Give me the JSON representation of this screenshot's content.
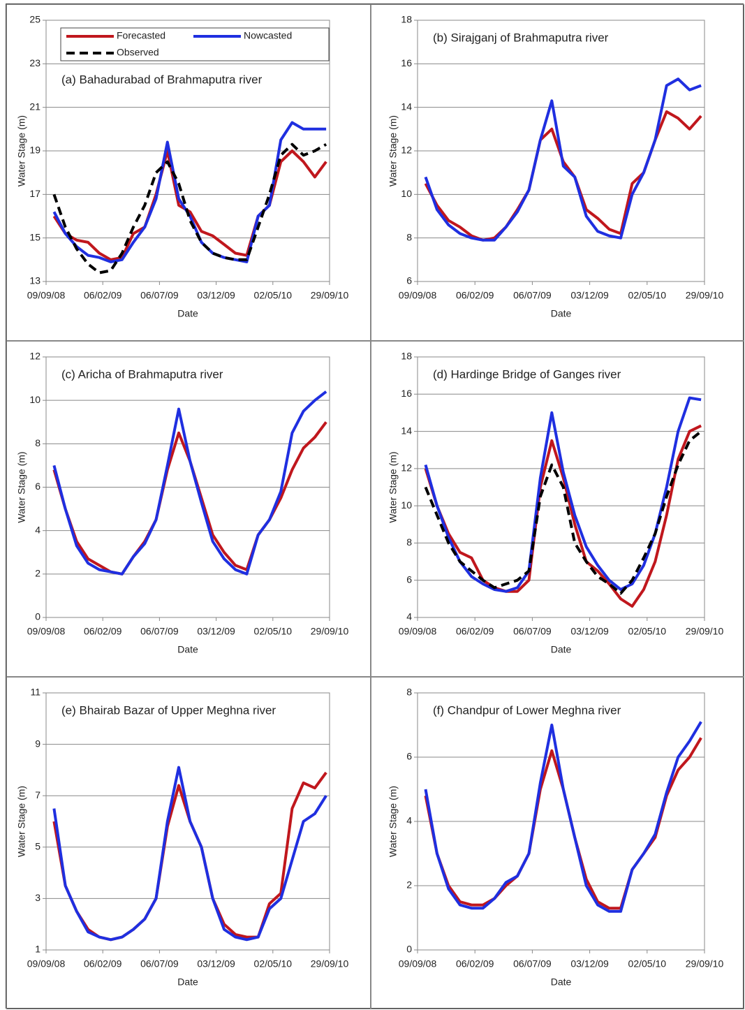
{
  "chart_data": [
    {
      "type": "line",
      "title": "(a) Bahadurabad of Brahmaputra river",
      "xlabel": "Date",
      "ylabel": "Water Stage (m)",
      "legend": "top-left",
      "grid": true,
      "x": [
        "2008-09-30",
        "2008-10-30",
        "2008-11-29",
        "2008-12-29",
        "2009-01-28",
        "2009-02-27",
        "2009-03-29",
        "2009-04-28",
        "2009-05-28",
        "2009-06-27",
        "2009-07-27",
        "2009-08-26",
        "2009-09-25",
        "2009-10-25",
        "2009-11-24",
        "2009-12-24",
        "2010-01-23",
        "2010-02-22",
        "2010-03-24",
        "2010-04-23",
        "2010-05-23",
        "2010-06-22",
        "2010-07-22",
        "2010-08-21",
        "2010-09-20"
      ],
      "xlim": [
        "2008-09-09",
        "2010-09-29"
      ],
      "xticks": [
        {
          "value": "2008-09-09",
          "label": "09/09/08"
        },
        {
          "value": "2009-02-06",
          "label": "06/02/09"
        },
        {
          "value": "2009-07-06",
          "label": "06/07/09"
        },
        {
          "value": "2009-12-03",
          "label": "03/12/09"
        },
        {
          "value": "2010-05-02",
          "label": "02/05/10"
        },
        {
          "value": "2010-09-29",
          "label": "29/09/10"
        }
      ],
      "ylim": [
        13,
        25
      ],
      "yticks": [
        13,
        15,
        17,
        19,
        21,
        23,
        25
      ],
      "series": [
        {
          "name": "Forecasted",
          "color": "#c0171d",
          "values": [
            16.0,
            15.2,
            14.9,
            14.8,
            14.3,
            14.0,
            14.1,
            15.2,
            15.5,
            17.0,
            19.0,
            16.5,
            16.2,
            15.3,
            15.1,
            14.7,
            14.3,
            14.2,
            16.0,
            16.5,
            18.5,
            19.0,
            18.5,
            17.8,
            18.5
          ]
        },
        {
          "name": "Nowcasted",
          "color": "#1f2fe0",
          "values": [
            16.2,
            15.2,
            14.6,
            14.2,
            14.1,
            13.9,
            14.0,
            14.8,
            15.5,
            16.8,
            19.4,
            16.8,
            16.0,
            14.8,
            14.3,
            14.1,
            14.0,
            13.9,
            16.0,
            16.5,
            19.5,
            20.3,
            20.0,
            20.0,
            20.0
          ]
        },
        {
          "name": "Observed",
          "color": "#000000",
          "linestyle": "dashed",
          "values": [
            17.0,
            15.5,
            14.5,
            13.8,
            13.4,
            13.5,
            14.3,
            15.5,
            16.5,
            18.0,
            18.5,
            17.5,
            15.8,
            14.8,
            14.3,
            14.1,
            14.0,
            14.0,
            15.5,
            17.0,
            18.8,
            19.3,
            18.8,
            19.0,
            19.3
          ]
        }
      ]
    },
    {
      "type": "line",
      "title": "(b) Sirajganj of Brahmaputra river",
      "xlabel": "Date",
      "ylabel": "Water Stage (m)",
      "grid": true,
      "x": [
        "2008-09-30",
        "2008-10-30",
        "2008-11-29",
        "2008-12-29",
        "2009-01-28",
        "2009-02-27",
        "2009-03-29",
        "2009-04-28",
        "2009-05-28",
        "2009-06-27",
        "2009-07-27",
        "2009-08-26",
        "2009-09-25",
        "2009-10-25",
        "2009-11-24",
        "2009-12-24",
        "2010-01-23",
        "2010-02-22",
        "2010-03-24",
        "2010-04-23",
        "2010-05-23",
        "2010-06-22",
        "2010-07-22",
        "2010-08-21",
        "2010-09-20"
      ],
      "xlim": [
        "2008-09-09",
        "2010-09-29"
      ],
      "xticks": [
        {
          "value": "2008-09-09",
          "label": "09/09/08"
        },
        {
          "value": "2009-02-06",
          "label": "06/02/09"
        },
        {
          "value": "2009-07-06",
          "label": "06/07/09"
        },
        {
          "value": "2009-12-03",
          "label": "03/12/09"
        },
        {
          "value": "2010-05-02",
          "label": "02/05/10"
        },
        {
          "value": "2010-09-29",
          "label": "29/09/10"
        }
      ],
      "ylim": [
        6,
        18
      ],
      "yticks": [
        6,
        8,
        10,
        12,
        14,
        16,
        18
      ],
      "series": [
        {
          "color": "#c0171d",
          "values": [
            10.5,
            9.5,
            8.8,
            8.5,
            8.1,
            7.9,
            8.0,
            8.5,
            9.3,
            10.2,
            12.5,
            13.0,
            11.5,
            10.8,
            9.3,
            8.9,
            8.4,
            8.2,
            10.5,
            11.0,
            12.5,
            13.8,
            13.5,
            13.0,
            13.6
          ]
        },
        {
          "color": "#1f2fe0",
          "values": [
            10.8,
            9.3,
            8.6,
            8.2,
            8.0,
            7.9,
            7.9,
            8.5,
            9.2,
            10.2,
            12.5,
            14.3,
            11.3,
            10.8,
            9.0,
            8.3,
            8.1,
            8.0,
            10.0,
            11.0,
            12.5,
            15.0,
            15.3,
            14.8,
            15.0
          ]
        }
      ]
    },
    {
      "type": "line",
      "title": "(c) Aricha of Brahmaputra river",
      "xlabel": "Date",
      "ylabel": "Water Stage (m)",
      "grid": true,
      "x": [
        "2008-09-30",
        "2008-10-30",
        "2008-11-29",
        "2008-12-29",
        "2009-01-28",
        "2009-02-27",
        "2009-03-29",
        "2009-04-28",
        "2009-05-28",
        "2009-06-27",
        "2009-07-27",
        "2009-08-26",
        "2009-09-25",
        "2009-10-25",
        "2009-11-24",
        "2009-12-24",
        "2010-01-23",
        "2010-02-22",
        "2010-03-24",
        "2010-04-23",
        "2010-05-23",
        "2010-06-22",
        "2010-07-22",
        "2010-08-21",
        "2010-09-20"
      ],
      "xlim": [
        "2008-09-09",
        "2010-09-29"
      ],
      "xticks": [
        {
          "value": "2008-09-09",
          "label": "09/09/08"
        },
        {
          "value": "2009-02-06",
          "label": "06/02/09"
        },
        {
          "value": "2009-07-06",
          "label": "06/07/09"
        },
        {
          "value": "2009-12-03",
          "label": "03/12/09"
        },
        {
          "value": "2010-05-02",
          "label": "02/05/10"
        },
        {
          "value": "2010-09-29",
          "label": "29/09/10"
        }
      ],
      "ylim": [
        0,
        12
      ],
      "yticks": [
        0,
        2,
        4,
        6,
        8,
        10,
        12
      ],
      "series": [
        {
          "color": "#c0171d",
          "values": [
            6.8,
            5.0,
            3.5,
            2.7,
            2.4,
            2.1,
            2.0,
            2.8,
            3.5,
            4.5,
            6.8,
            8.5,
            7.2,
            5.5,
            3.8,
            3.0,
            2.4,
            2.2,
            3.8,
            4.5,
            5.5,
            6.8,
            7.8,
            8.3,
            9.0
          ]
        },
        {
          "color": "#1f2fe0",
          "values": [
            7.0,
            5.0,
            3.3,
            2.5,
            2.2,
            2.1,
            2.0,
            2.8,
            3.4,
            4.5,
            7.0,
            9.6,
            7.2,
            5.3,
            3.5,
            2.7,
            2.2,
            2.0,
            3.8,
            4.5,
            5.8,
            8.5,
            9.5,
            10.0,
            10.4
          ]
        }
      ]
    },
    {
      "type": "line",
      "title": "(d) Hardinge Bridge of Ganges river",
      "xlabel": "Date",
      "ylabel": "Water Stage (m)",
      "grid": true,
      "x": [
        "2008-09-30",
        "2008-10-30",
        "2008-11-29",
        "2008-12-29",
        "2009-01-28",
        "2009-02-27",
        "2009-03-29",
        "2009-04-28",
        "2009-05-28",
        "2009-06-27",
        "2009-07-27",
        "2009-08-26",
        "2009-09-25",
        "2009-10-25",
        "2009-11-24",
        "2009-12-24",
        "2010-01-23",
        "2010-02-22",
        "2010-03-24",
        "2010-04-23",
        "2010-05-23",
        "2010-06-22",
        "2010-07-22",
        "2010-08-21",
        "2010-09-20"
      ],
      "xlim": [
        "2008-09-09",
        "2010-09-29"
      ],
      "xticks": [
        {
          "value": "2008-09-09",
          "label": "09/09/08"
        },
        {
          "value": "2009-02-06",
          "label": "06/02/09"
        },
        {
          "value": "2009-07-06",
          "label": "06/07/09"
        },
        {
          "value": "2009-12-03",
          "label": "03/12/09"
        },
        {
          "value": "2010-05-02",
          "label": "02/05/10"
        },
        {
          "value": "2010-09-29",
          "label": "29/09/10"
        }
      ],
      "ylim": [
        4,
        18
      ],
      "yticks": [
        4,
        6,
        8,
        10,
        12,
        14,
        16,
        18
      ],
      "series": [
        {
          "color": "#c0171d",
          "values": [
            12.0,
            10.0,
            8.5,
            7.5,
            7.2,
            6.0,
            5.6,
            5.4,
            5.4,
            6.0,
            11.0,
            13.5,
            11.5,
            9.0,
            7.0,
            6.5,
            5.8,
            5.0,
            4.6,
            5.5,
            7.0,
            9.5,
            12.5,
            14.0,
            14.3
          ]
        },
        {
          "color": "#1f2fe0",
          "values": [
            12.2,
            10.0,
            8.3,
            7.0,
            6.2,
            5.8,
            5.5,
            5.4,
            5.6,
            6.5,
            11.5,
            15.0,
            11.8,
            9.5,
            7.8,
            6.8,
            6.0,
            5.5,
            5.8,
            6.8,
            8.5,
            11.0,
            14.0,
            15.8,
            15.7
          ]
        },
        {
          "color": "#000000",
          "linestyle": "dashed",
          "values": [
            11.0,
            9.5,
            8.0,
            7.0,
            6.5,
            6.0,
            5.6,
            5.8,
            6.0,
            6.5,
            10.5,
            12.2,
            11.0,
            8.0,
            7.0,
            6.2,
            5.8,
            5.3,
            6.0,
            7.2,
            8.5,
            10.5,
            12.2,
            13.5,
            14.0
          ]
        }
      ]
    },
    {
      "type": "line",
      "title": "(e) Bhairab Bazar of Upper Meghna river",
      "xlabel": "Date",
      "ylabel": "Water Stage (m)",
      "grid": true,
      "x": [
        "2008-09-30",
        "2008-10-30",
        "2008-11-29",
        "2008-12-29",
        "2009-01-28",
        "2009-02-27",
        "2009-03-29",
        "2009-04-28",
        "2009-05-28",
        "2009-06-27",
        "2009-07-27",
        "2009-08-26",
        "2009-09-25",
        "2009-10-25",
        "2009-11-24",
        "2009-12-24",
        "2010-01-23",
        "2010-02-22",
        "2010-03-24",
        "2010-04-23",
        "2010-05-23",
        "2010-06-22",
        "2010-07-22",
        "2010-08-21",
        "2010-09-20"
      ],
      "xlim": [
        "2008-09-09",
        "2010-09-29"
      ],
      "xticks": [
        {
          "value": "2008-09-09",
          "label": "09/09/08"
        },
        {
          "value": "2009-02-06",
          "label": "06/02/09"
        },
        {
          "value": "2009-07-06",
          "label": "06/07/09"
        },
        {
          "value": "2009-12-03",
          "label": "03/12/09"
        },
        {
          "value": "2010-05-02",
          "label": "02/05/10"
        },
        {
          "value": "2010-09-29",
          "label": "29/09/10"
        }
      ],
      "ylim": [
        1,
        11
      ],
      "yticks": [
        1,
        3,
        5,
        7,
        9,
        11
      ],
      "series": [
        {
          "color": "#c0171d",
          "values": [
            6.0,
            3.5,
            2.5,
            1.8,
            1.5,
            1.4,
            1.5,
            1.8,
            2.2,
            3.0,
            5.8,
            7.4,
            6.0,
            5.0,
            3.0,
            2.0,
            1.6,
            1.5,
            1.5,
            2.8,
            3.2,
            6.5,
            7.5,
            7.3,
            7.9
          ]
        },
        {
          "color": "#1f2fe0",
          "values": [
            6.5,
            3.5,
            2.5,
            1.7,
            1.5,
            1.4,
            1.5,
            1.8,
            2.2,
            3.0,
            6.0,
            8.1,
            6.0,
            5.0,
            3.0,
            1.8,
            1.5,
            1.4,
            1.5,
            2.6,
            3.0,
            4.5,
            6.0,
            6.3,
            7.0
          ]
        }
      ]
    },
    {
      "type": "line",
      "title": "(f) Chandpur of Lower Meghna river",
      "xlabel": "Date",
      "ylabel": "Water Stage (m)",
      "grid": true,
      "x": [
        "2008-09-30",
        "2008-10-30",
        "2008-11-29",
        "2008-12-29",
        "2009-01-28",
        "2009-02-27",
        "2009-03-29",
        "2009-04-28",
        "2009-05-28",
        "2009-06-27",
        "2009-07-27",
        "2009-08-26",
        "2009-09-25",
        "2009-10-25",
        "2009-11-24",
        "2009-12-24",
        "2010-01-23",
        "2010-02-22",
        "2010-03-24",
        "2010-04-23",
        "2010-05-23",
        "2010-06-22",
        "2010-07-22",
        "2010-08-21",
        "2010-09-20"
      ],
      "xlim": [
        "2008-09-09",
        "2010-09-29"
      ],
      "xticks": [
        {
          "value": "2008-09-09",
          "label": "09/09/08"
        },
        {
          "value": "2009-02-06",
          "label": "06/02/09"
        },
        {
          "value": "2009-07-06",
          "label": "06/07/09"
        },
        {
          "value": "2009-12-03",
          "label": "03/12/09"
        },
        {
          "value": "2010-05-02",
          "label": "02/05/10"
        },
        {
          "value": "2010-09-29",
          "label": "29/09/10"
        }
      ],
      "ylim": [
        0,
        8
      ],
      "yticks": [
        0,
        2,
        4,
        6,
        8
      ],
      "series": [
        {
          "color": "#c0171d",
          "values": [
            4.8,
            3.0,
            2.0,
            1.5,
            1.4,
            1.4,
            1.6,
            2.0,
            2.3,
            3.0,
            5.0,
            6.2,
            5.0,
            3.5,
            2.2,
            1.5,
            1.3,
            1.3,
            2.5,
            3.0,
            3.5,
            4.8,
            5.6,
            6.0,
            6.6
          ]
        },
        {
          "color": "#1f2fe0",
          "values": [
            5.0,
            3.0,
            1.9,
            1.4,
            1.3,
            1.3,
            1.6,
            2.1,
            2.3,
            3.0,
            5.2,
            7.0,
            5.0,
            3.5,
            2.0,
            1.4,
            1.2,
            1.2,
            2.5,
            3.0,
            3.6,
            4.9,
            6.0,
            6.5,
            7.1
          ]
        }
      ]
    }
  ]
}
